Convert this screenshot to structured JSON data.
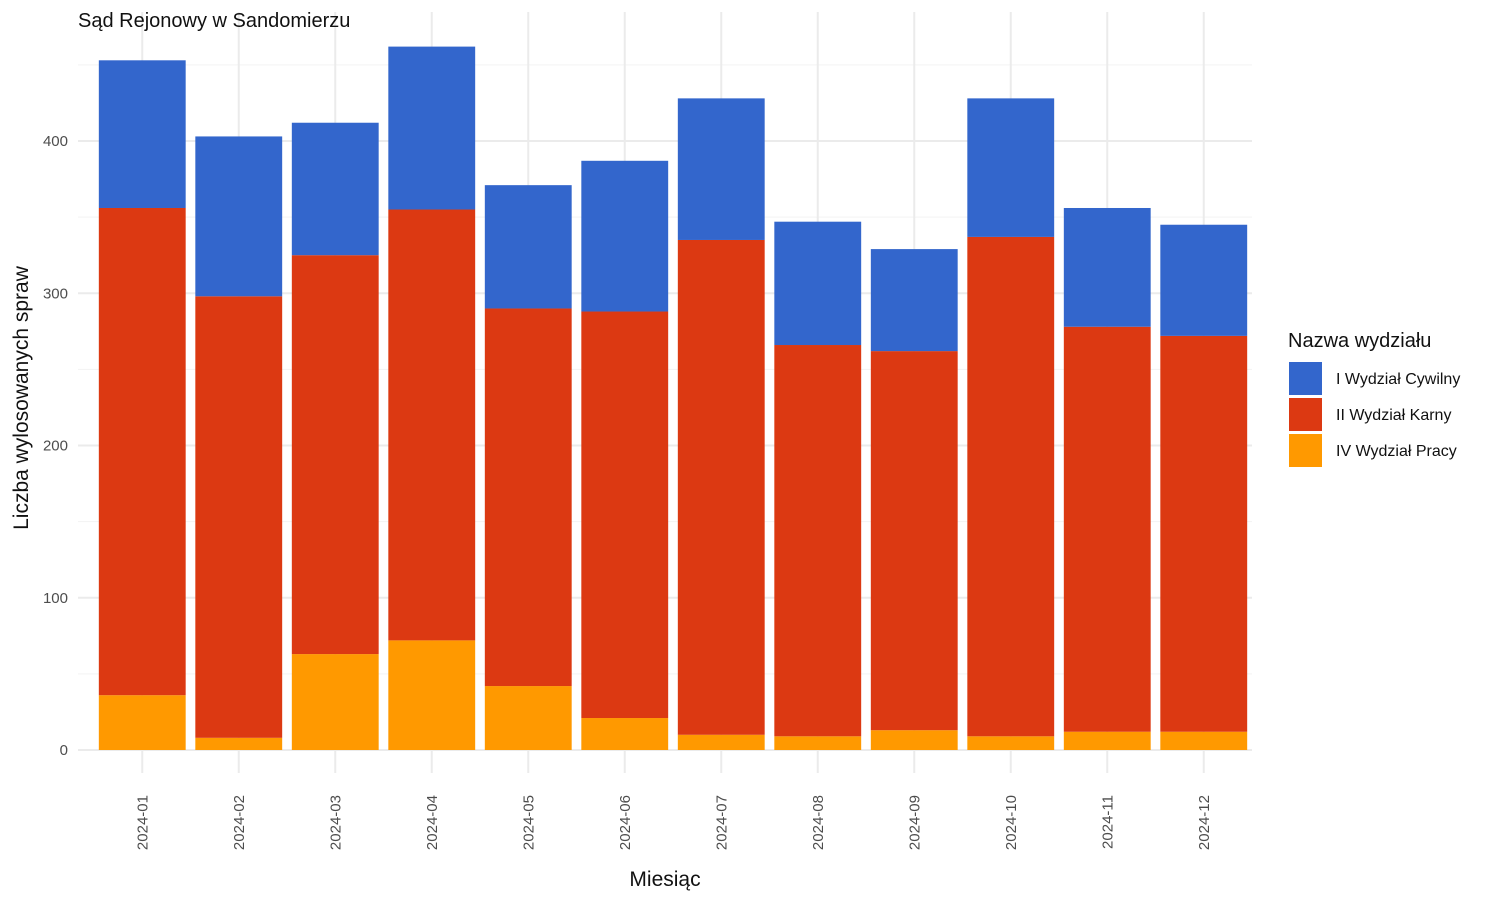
{
  "chart_data": {
    "type": "bar",
    "stacked": true,
    "title": "Sąd Rejonowy w Sandomierzu",
    "xlabel": "Miesiąc",
    "ylabel": "Liczba wylosowanych spraw",
    "ylim": [
      -15,
      470
    ],
    "yticks": [
      0,
      100,
      200,
      300,
      400
    ],
    "grid": true,
    "legend_placement": "right",
    "legend_title": "Nazwa wydziału",
    "categories": [
      "2024-01",
      "2024-02",
      "2024-03",
      "2024-04",
      "2024-05",
      "2024-06",
      "2024-07",
      "2024-08",
      "2024-09",
      "2024-10",
      "2024-11",
      "2024-12"
    ],
    "series": [
      {
        "name": "I Wydział Cywilny",
        "color": "#3366cc",
        "values": [
          97,
          105,
          87,
          107,
          81,
          99,
          93,
          81,
          67,
          91,
          78,
          73
        ]
      },
      {
        "name": "II Wydział Karny",
        "color": "#dc3912",
        "values": [
          320,
          290,
          262,
          283,
          248,
          267,
          325,
          257,
          249,
          328,
          266,
          260
        ]
      },
      {
        "name": "IV Wydział Pracy",
        "color": "#ff9900",
        "values": [
          36,
          8,
          63,
          72,
          42,
          21,
          10,
          9,
          13,
          9,
          12,
          12
        ]
      }
    ]
  }
}
